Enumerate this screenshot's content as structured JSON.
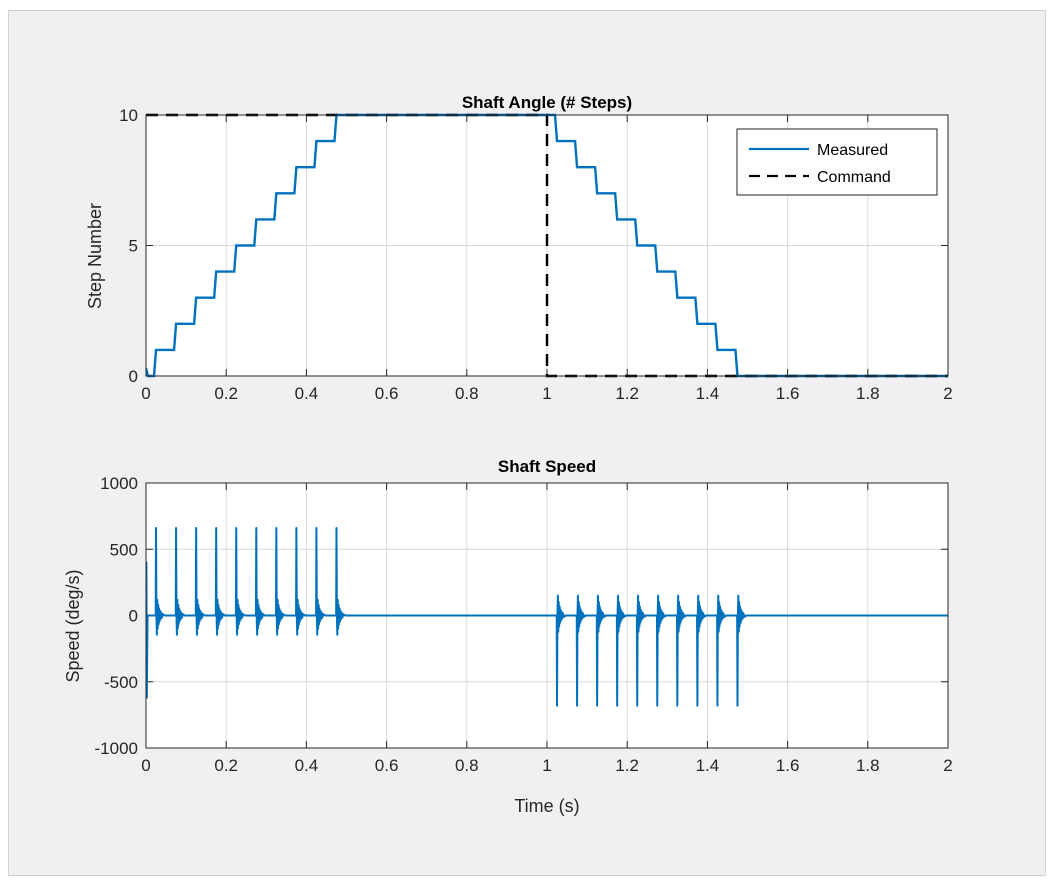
{
  "colors": {
    "figure_bg": "#f0f0f3",
    "axes_bg": "#ffffff",
    "grid": "#d9d9d9",
    "axis": "#262626",
    "measured": "#0072bd",
    "command": "#000000"
  },
  "chart_data": [
    {
      "type": "line",
      "title": "Shaft Angle (# Steps)",
      "xlabel": "",
      "ylabel": "Step Number",
      "xlim": [
        0,
        2
      ],
      "ylim": [
        0,
        10
      ],
      "xticks": [
        "0",
        "0.2",
        "0.4",
        "0.6",
        "0.8",
        "1",
        "1.2",
        "1.4",
        "1.6",
        "1.8",
        "2"
      ],
      "yticks": [
        "0",
        "5",
        "10"
      ],
      "grid": true,
      "legend": {
        "placement": "top-right",
        "entries": [
          "Measured",
          "Command"
        ]
      },
      "series": [
        {
          "name": "Measured",
          "color": "#0072bd",
          "style": "solid",
          "x": [
            0,
            0.005,
            0.02,
            0.025,
            0.05,
            0.07,
            0.075,
            0.1,
            0.12,
            0.125,
            0.15,
            0.17,
            0.175,
            0.2,
            0.22,
            0.225,
            0.25,
            0.27,
            0.275,
            0.3,
            0.32,
            0.325,
            0.35,
            0.37,
            0.375,
            0.4,
            0.42,
            0.425,
            0.45,
            0.47,
            0.475,
            0.5,
            1.0,
            1.02,
            1.025,
            1.05,
            1.07,
            1.075,
            1.1,
            1.12,
            1.125,
            1.15,
            1.17,
            1.175,
            1.2,
            1.22,
            1.225,
            1.25,
            1.27,
            1.275,
            1.3,
            1.32,
            1.325,
            1.35,
            1.37,
            1.375,
            1.4,
            1.42,
            1.425,
            1.45,
            1.47,
            1.475,
            1.5,
            2.0
          ],
          "y": [
            0.3,
            0.0,
            0.0,
            1.0,
            1.0,
            1.0,
            2.0,
            2.0,
            2.0,
            3.0,
            3.0,
            3.0,
            4.0,
            4.0,
            4.0,
            5.0,
            5.0,
            5.0,
            6.0,
            6.0,
            6.0,
            7.0,
            7.0,
            7.0,
            8.0,
            8.0,
            8.0,
            9.0,
            9.0,
            9.0,
            10.0,
            10.0,
            10.0,
            10.0,
            9.0,
            9.0,
            9.0,
            8.0,
            8.0,
            8.0,
            7.0,
            7.0,
            7.0,
            6.0,
            6.0,
            6.0,
            5.0,
            5.0,
            5.0,
            4.0,
            4.0,
            4.0,
            3.0,
            3.0,
            3.0,
            2.0,
            2.0,
            2.0,
            1.0,
            1.0,
            1.0,
            0.0,
            0.0,
            0.0
          ]
        },
        {
          "name": "Command",
          "color": "#000000",
          "style": "dashed",
          "x": [
            0,
            1,
            1,
            2
          ],
          "y": [
            10,
            10,
            0,
            0
          ]
        }
      ]
    },
    {
      "type": "line",
      "title": "Shaft Speed",
      "xlabel": "Time (s)",
      "ylabel": "Speed (deg/s)",
      "xlim": [
        0,
        2
      ],
      "ylim": [
        -1000,
        1000
      ],
      "xticks": [
        "0",
        "0.2",
        "0.4",
        "0.6",
        "0.8",
        "1",
        "1.2",
        "1.4",
        "1.6",
        "1.8",
        "2"
      ],
      "yticks": [
        "-1000",
        "-500",
        "0",
        "500",
        "1000"
      ],
      "grid": true,
      "series": [
        {
          "color": "#0072bd",
          "style": "solid",
          "baseline": 0,
          "initial_transient": {
            "x": 0.002,
            "max": 400,
            "min": -620
          },
          "spikes": [
            {
              "x": 0.025,
              "peak": 660
            },
            {
              "x": 0.075,
              "peak": 660
            },
            {
              "x": 0.125,
              "peak": 660
            },
            {
              "x": 0.175,
              "peak": 660
            },
            {
              "x": 0.225,
              "peak": 660
            },
            {
              "x": 0.275,
              "peak": 660
            },
            {
              "x": 0.325,
              "peak": 660
            },
            {
              "x": 0.375,
              "peak": 660
            },
            {
              "x": 0.425,
              "peak": 660
            },
            {
              "x": 0.475,
              "peak": 660
            },
            {
              "x": 1.025,
              "peak": -680
            },
            {
              "x": 1.075,
              "peak": -680
            },
            {
              "x": 1.125,
              "peak": -680
            },
            {
              "x": 1.175,
              "peak": -680
            },
            {
              "x": 1.225,
              "peak": -680
            },
            {
              "x": 1.275,
              "peak": -680
            },
            {
              "x": 1.325,
              "peak": -680
            },
            {
              "x": 1.375,
              "peak": -680
            },
            {
              "x": 1.425,
              "peak": -680
            },
            {
              "x": 1.475,
              "peak": -680
            }
          ]
        }
      ]
    }
  ]
}
